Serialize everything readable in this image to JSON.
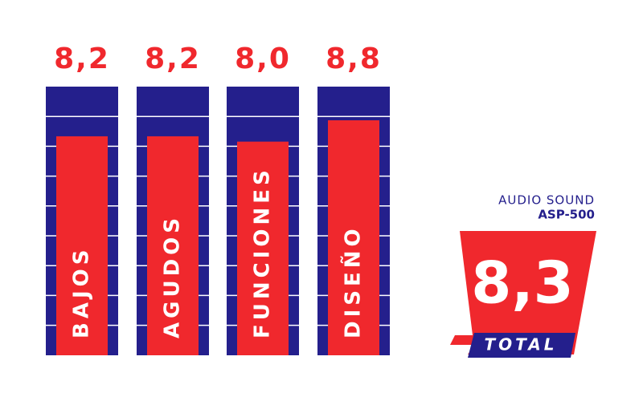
{
  "chart_data": {
    "type": "bar",
    "categories": [
      "BAJOS",
      "AGUDOS",
      "FUNCIONES",
      "DISEÑO"
    ],
    "values": [
      8.2,
      8.2,
      8.0,
      8.8
    ],
    "value_labels": [
      "8,2",
      "8,2",
      "8,0",
      "8,8"
    ],
    "color": "#f0282d",
    "background_color": "#241f8c",
    "ylim": [
      0,
      10
    ],
    "brand": "AUDIO SOUND",
    "model": "ASP-500",
    "total": {
      "label": "TOTAL",
      "value": 8.3,
      "value_label": "8,3"
    }
  }
}
